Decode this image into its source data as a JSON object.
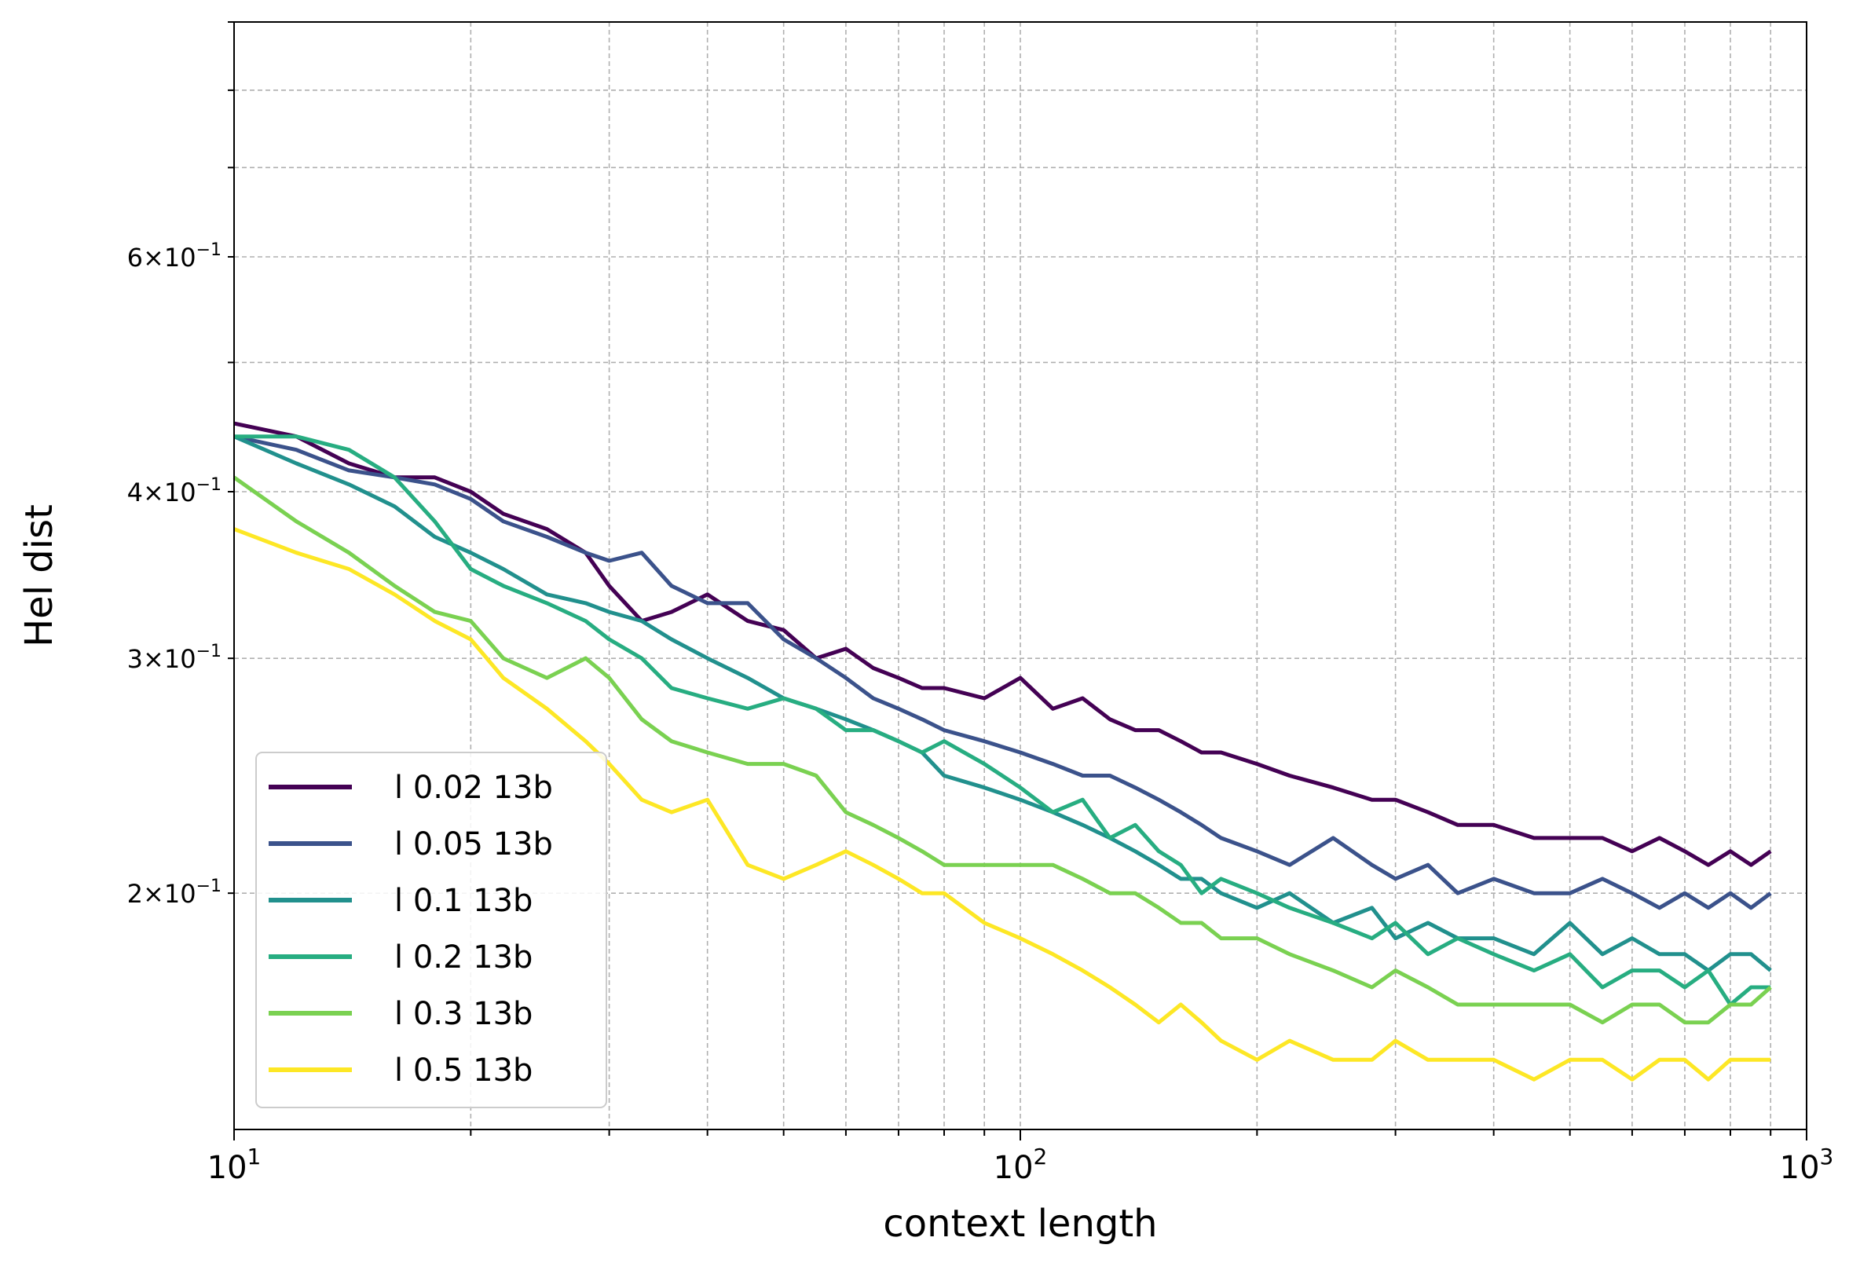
{
  "chart_data": {
    "type": "line",
    "title": "",
    "xlabel": "context length",
    "ylabel": "Hel dist",
    "xscale": "log",
    "yscale": "log",
    "xlim": [
      10,
      1000
    ],
    "ylim": [
      0.133,
      0.9
    ],
    "grid": true,
    "legend_position": "lower-left",
    "x_major_ticks": [
      {
        "value": 10,
        "base": "10",
        "exp": "1"
      },
      {
        "value": 100,
        "base": "10",
        "exp": "2"
      },
      {
        "value": 1000,
        "base": "10",
        "exp": "3"
      }
    ],
    "y_tick_labels": [
      {
        "value": 0.2,
        "mant": "2",
        "exp": "−1"
      },
      {
        "value": 0.3,
        "mant": "3",
        "exp": "−1"
      },
      {
        "value": 0.4,
        "mant": "4",
        "exp": "−1"
      },
      {
        "value": 0.6,
        "mant": "6",
        "exp": "−1"
      }
    ],
    "y_minor_gridlines": [
      0.5,
      0.7,
      0.8,
      0.9
    ],
    "series": [
      {
        "name": "l 0.02 13b",
        "color": "#440154",
        "x": [
          10,
          12,
          14,
          16,
          18,
          20,
          22,
          25,
          28,
          30,
          33,
          36,
          40,
          45,
          50,
          55,
          60,
          65,
          70,
          75,
          80,
          90,
          100,
          110,
          120,
          130,
          140,
          150,
          160,
          170,
          180,
          200,
          220,
          250,
          280,
          300,
          330,
          360,
          400,
          450,
          500,
          550,
          600,
          650,
          700,
          750,
          800,
          850,
          900
        ],
        "y": [
          0.45,
          0.44,
          0.42,
          0.41,
          0.41,
          0.4,
          0.385,
          0.375,
          0.36,
          0.34,
          0.32,
          0.325,
          0.335,
          0.32,
          0.315,
          0.3,
          0.305,
          0.295,
          0.29,
          0.285,
          0.285,
          0.28,
          0.29,
          0.275,
          0.28,
          0.27,
          0.265,
          0.265,
          0.26,
          0.255,
          0.255,
          0.25,
          0.245,
          0.24,
          0.235,
          0.235,
          0.23,
          0.225,
          0.225,
          0.22,
          0.22,
          0.22,
          0.215,
          0.22,
          0.215,
          0.21,
          0.215,
          0.21,
          0.215
        ]
      },
      {
        "name": "l 0.05 13b",
        "color": "#3b528b",
        "x": [
          10,
          12,
          14,
          16,
          18,
          20,
          22,
          25,
          28,
          30,
          33,
          36,
          40,
          45,
          50,
          55,
          60,
          65,
          70,
          75,
          80,
          90,
          100,
          110,
          120,
          130,
          140,
          150,
          160,
          170,
          180,
          200,
          220,
          250,
          280,
          300,
          330,
          360,
          400,
          450,
          500,
          550,
          600,
          650,
          700,
          750,
          800,
          850,
          900
        ],
        "y": [
          0.44,
          0.43,
          0.415,
          0.41,
          0.405,
          0.395,
          0.38,
          0.37,
          0.36,
          0.355,
          0.36,
          0.34,
          0.33,
          0.33,
          0.31,
          0.3,
          0.29,
          0.28,
          0.275,
          0.27,
          0.265,
          0.26,
          0.255,
          0.25,
          0.245,
          0.245,
          0.24,
          0.235,
          0.23,
          0.225,
          0.22,
          0.215,
          0.21,
          0.22,
          0.21,
          0.205,
          0.21,
          0.2,
          0.205,
          0.2,
          0.2,
          0.205,
          0.2,
          0.195,
          0.2,
          0.195,
          0.2,
          0.195,
          0.2
        ]
      },
      {
        "name": "l 0.1 13b",
        "color": "#21908d",
        "x": [
          10,
          12,
          14,
          16,
          18,
          20,
          22,
          25,
          28,
          30,
          33,
          36,
          40,
          45,
          50,
          55,
          60,
          65,
          70,
          75,
          80,
          90,
          100,
          110,
          120,
          130,
          140,
          150,
          160,
          170,
          180,
          200,
          220,
          250,
          280,
          300,
          330,
          360,
          400,
          450,
          500,
          550,
          600,
          650,
          700,
          750,
          800,
          850,
          900
        ],
        "y": [
          0.44,
          0.42,
          0.405,
          0.39,
          0.37,
          0.36,
          0.35,
          0.335,
          0.33,
          0.325,
          0.32,
          0.31,
          0.3,
          0.29,
          0.28,
          0.275,
          0.27,
          0.265,
          0.26,
          0.255,
          0.245,
          0.24,
          0.235,
          0.23,
          0.225,
          0.22,
          0.215,
          0.21,
          0.205,
          0.205,
          0.2,
          0.195,
          0.2,
          0.19,
          0.195,
          0.185,
          0.19,
          0.185,
          0.185,
          0.18,
          0.19,
          0.18,
          0.185,
          0.18,
          0.18,
          0.175,
          0.18,
          0.18,
          0.175
        ]
      },
      {
        "name": "l 0.2 13b",
        "color": "#27ad81",
        "x": [
          10,
          12,
          14,
          16,
          18,
          20,
          22,
          25,
          28,
          30,
          33,
          36,
          40,
          45,
          50,
          55,
          60,
          65,
          70,
          75,
          80,
          90,
          100,
          110,
          120,
          130,
          140,
          150,
          160,
          170,
          180,
          200,
          220,
          250,
          280,
          300,
          330,
          360,
          400,
          450,
          500,
          550,
          600,
          650,
          700,
          750,
          800,
          850,
          900
        ],
        "y": [
          0.44,
          0.44,
          0.43,
          0.41,
          0.38,
          0.35,
          0.34,
          0.33,
          0.32,
          0.31,
          0.3,
          0.285,
          0.28,
          0.275,
          0.28,
          0.275,
          0.265,
          0.265,
          0.26,
          0.255,
          0.26,
          0.25,
          0.24,
          0.23,
          0.235,
          0.22,
          0.225,
          0.215,
          0.21,
          0.2,
          0.205,
          0.2,
          0.195,
          0.19,
          0.185,
          0.19,
          0.18,
          0.185,
          0.18,
          0.175,
          0.18,
          0.17,
          0.175,
          0.175,
          0.17,
          0.175,
          0.165,
          0.17,
          0.17
        ]
      },
      {
        "name": "l 0.3 13b",
        "color": "#7ad151",
        "x": [
          10,
          12,
          14,
          16,
          18,
          20,
          22,
          25,
          28,
          30,
          33,
          36,
          40,
          45,
          50,
          55,
          60,
          65,
          70,
          75,
          80,
          90,
          100,
          110,
          120,
          130,
          140,
          150,
          160,
          170,
          180,
          200,
          220,
          250,
          280,
          300,
          330,
          360,
          400,
          450,
          500,
          550,
          600,
          650,
          700,
          750,
          800,
          850,
          900
        ],
        "y": [
          0.41,
          0.38,
          0.36,
          0.34,
          0.325,
          0.32,
          0.3,
          0.29,
          0.3,
          0.29,
          0.27,
          0.26,
          0.255,
          0.25,
          0.25,
          0.245,
          0.23,
          0.225,
          0.22,
          0.215,
          0.21,
          0.21,
          0.21,
          0.21,
          0.205,
          0.2,
          0.2,
          0.195,
          0.19,
          0.19,
          0.185,
          0.185,
          0.18,
          0.175,
          0.17,
          0.175,
          0.17,
          0.165,
          0.165,
          0.165,
          0.165,
          0.16,
          0.165,
          0.165,
          0.16,
          0.16,
          0.165,
          0.165,
          0.17
        ]
      },
      {
        "name": "l 0.5 13b",
        "color": "#fde725",
        "x": [
          10,
          12,
          14,
          16,
          18,
          20,
          22,
          25,
          28,
          30,
          33,
          36,
          40,
          45,
          50,
          55,
          60,
          65,
          70,
          75,
          80,
          90,
          100,
          110,
          120,
          130,
          140,
          150,
          160,
          170,
          180,
          200,
          220,
          250,
          280,
          300,
          330,
          360,
          400,
          450,
          500,
          550,
          600,
          650,
          700,
          750,
          800,
          850,
          900
        ],
        "y": [
          0.375,
          0.36,
          0.35,
          0.335,
          0.32,
          0.31,
          0.29,
          0.275,
          0.26,
          0.25,
          0.235,
          0.23,
          0.235,
          0.21,
          0.205,
          0.21,
          0.215,
          0.21,
          0.205,
          0.2,
          0.2,
          0.19,
          0.185,
          0.18,
          0.175,
          0.17,
          0.165,
          0.16,
          0.165,
          0.16,
          0.155,
          0.15,
          0.155,
          0.15,
          0.15,
          0.155,
          0.15,
          0.15,
          0.15,
          0.145,
          0.15,
          0.15,
          0.145,
          0.15,
          0.15,
          0.145,
          0.15,
          0.15,
          0.15
        ]
      }
    ]
  }
}
